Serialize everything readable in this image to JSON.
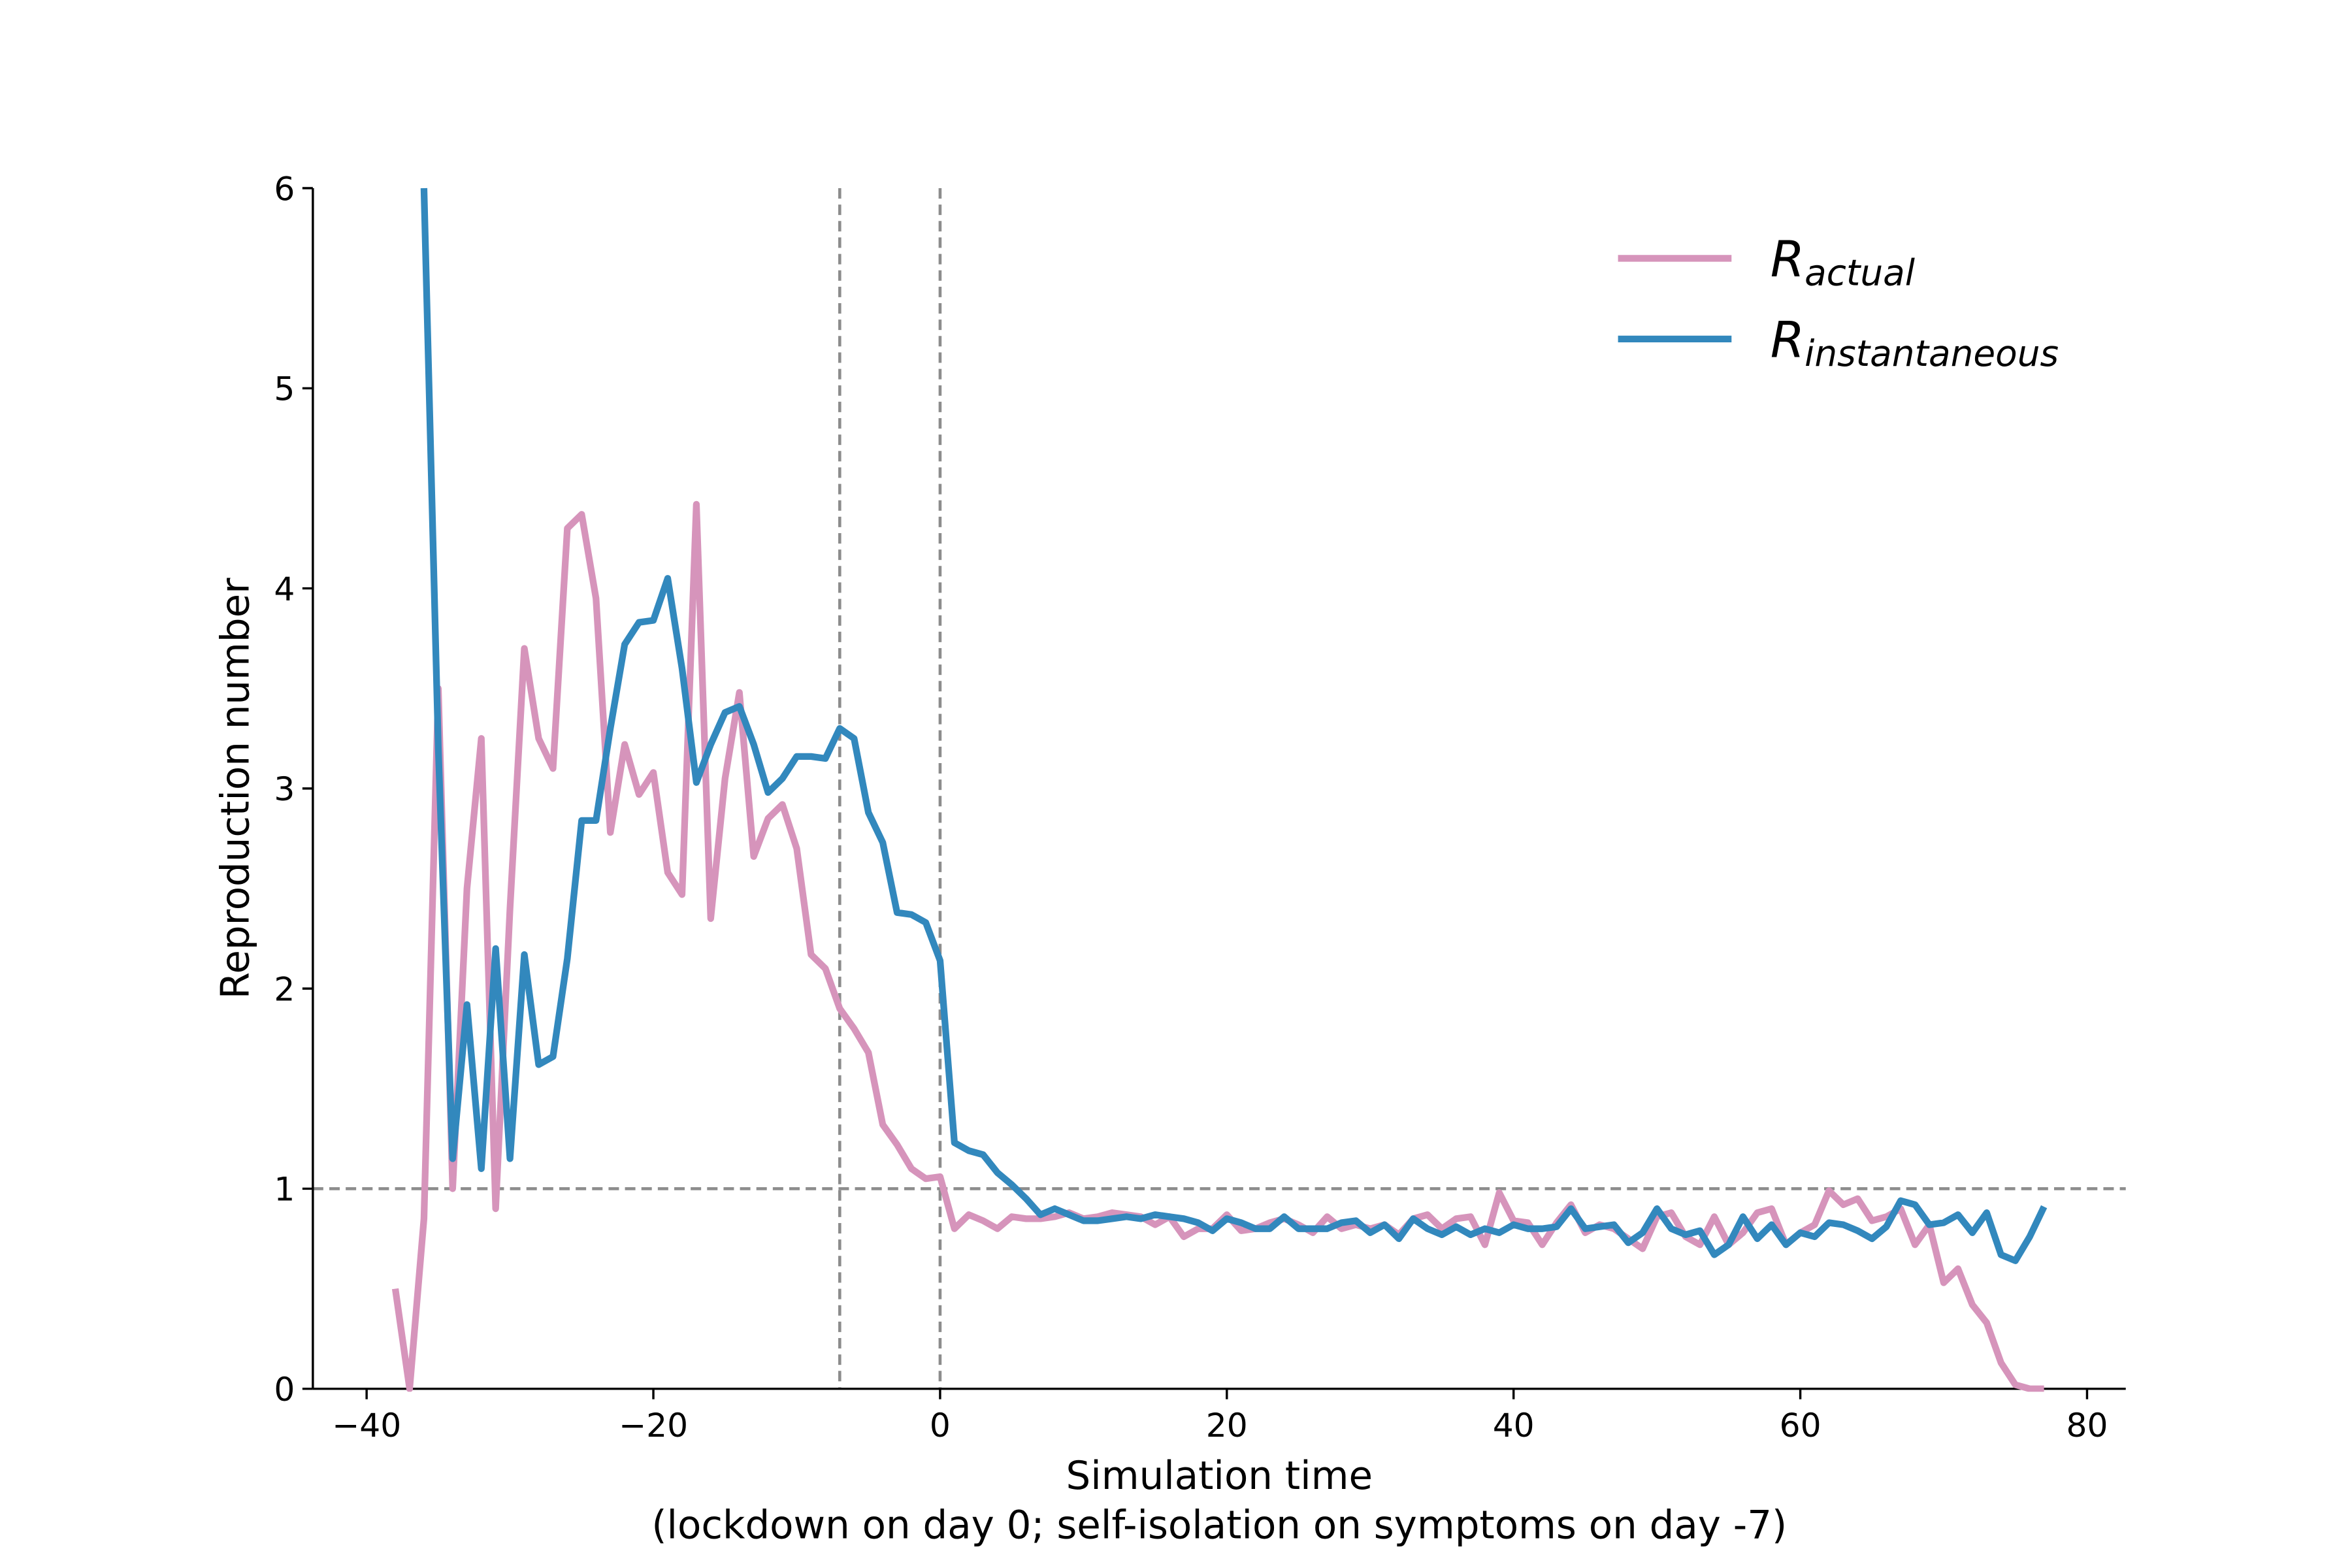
{
  "chart_data": {
    "type": "line",
    "xlabel": [
      "Simulation time",
      "(lockdown on day 0; self-isolation on symptoms on day -7)"
    ],
    "ylabel": "Reproduction number",
    "xlim": [
      -43.75,
      82.7
    ],
    "ylim": [
      0,
      6
    ],
    "xticks": [
      {
        "value": -40,
        "label": "−40"
      },
      {
        "value": -20,
        "label": "−20"
      },
      0,
      20,
      40,
      60,
      80
    ],
    "yticks": [
      0,
      1,
      2,
      3,
      4,
      5,
      6
    ],
    "grid": false,
    "legend": "upper right",
    "vlines": [
      -7,
      0
    ],
    "hlines": [
      1
    ],
    "reference_color": "#8c8c8c",
    "x": [
      -38,
      -37,
      -36,
      -35,
      -34,
      -33,
      -32,
      -31,
      -30,
      -29,
      -28,
      -27,
      -26,
      -25,
      -24,
      -23,
      -22,
      -21,
      -20,
      -19,
      -18,
      -17,
      -16,
      -15,
      -14,
      -13,
      -12,
      -11,
      -10,
      -9,
      -8,
      -7,
      -6,
      -5,
      -4,
      -3,
      -2,
      -1,
      0,
      1,
      2,
      3,
      4,
      5,
      6,
      7,
      8,
      9,
      10,
      11,
      12,
      13,
      14,
      15,
      16,
      17,
      18,
      19,
      20,
      21,
      22,
      23,
      24,
      25,
      26,
      27,
      28,
      29,
      30,
      31,
      32,
      33,
      34,
      35,
      36,
      37,
      38,
      39,
      40,
      41,
      42,
      43,
      44,
      45,
      46,
      47,
      48,
      49,
      50,
      51,
      52,
      53,
      54,
      55,
      56,
      57,
      58,
      59,
      60,
      61,
      62,
      63,
      64,
      65,
      66,
      67,
      68,
      69,
      70,
      71,
      72,
      73,
      74,
      75,
      76,
      77
    ],
    "series": [
      {
        "name": "R",
        "subscript": "actual",
        "color": "#d694bb",
        "values": [
          0.5,
          0,
          0.85,
          3.5,
          1.0,
          2.5,
          3.25,
          0.9,
          2.4,
          3.7,
          3.25,
          3.1,
          4.3,
          4.37,
          3.95,
          2.78,
          3.22,
          2.97,
          3.08,
          2.58,
          2.47,
          4.42,
          2.35,
          3.05,
          3.48,
          2.66,
          2.85,
          2.92,
          2.7,
          2.17,
          2.1,
          1.9,
          1.8,
          1.68,
          1.32,
          1.22,
          1.1,
          1.05,
          1.06,
          0.8,
          0.87,
          0.84,
          0.8,
          0.86,
          0.85,
          0.85,
          0.86,
          0.88,
          0.85,
          0.86,
          0.88,
          0.87,
          0.86,
          0.82,
          0.86,
          0.76,
          0.8,
          0.8,
          0.87,
          0.79,
          0.8,
          0.83,
          0.85,
          0.82,
          0.78,
          0.86,
          0.8,
          0.82,
          0.8,
          0.82,
          0.77,
          0.85,
          0.87,
          0.8,
          0.85,
          0.86,
          0.72,
          0.98,
          0.84,
          0.83,
          0.72,
          0.83,
          0.92,
          0.78,
          0.82,
          0.8,
          0.75,
          0.7,
          0.86,
          0.88,
          0.76,
          0.72,
          0.86,
          0.72,
          0.78,
          0.88,
          0.9,
          0.72,
          0.78,
          0.82,
          0.99,
          0.92,
          0.95,
          0.84,
          0.86,
          0.9,
          0.72,
          0.82,
          0.53,
          0.6,
          0.42,
          0.33,
          0.13,
          0.02,
          0,
          0
        ]
      },
      {
        "name": "R",
        "subscript": "instantaneous",
        "color": "#3288bd",
        "values": [
          null,
          null,
          6,
          3.2,
          1.15,
          1.92,
          1.1,
          2.2,
          1.15,
          2.17,
          1.62,
          1.66,
          2.15,
          2.84,
          2.84,
          3.3,
          3.72,
          3.83,
          3.84,
          4.05,
          3.6,
          3.03,
          3.22,
          3.38,
          3.41,
          3.22,
          2.98,
          3.05,
          3.16,
          3.16,
          3.15,
          3.3,
          3.25,
          2.88,
          2.73,
          2.38,
          2.37,
          2.33,
          2.14,
          1.23,
          1.19,
          1.17,
          1.08,
          1.02,
          0.95,
          0.87,
          0.9,
          0.87,
          0.84,
          0.84,
          0.85,
          0.86,
          0.85,
          0.87,
          0.86,
          0.85,
          0.83,
          0.79,
          0.85,
          0.83,
          0.8,
          0.8,
          0.86,
          0.8,
          0.8,
          0.8,
          0.83,
          0.84,
          0.78,
          0.82,
          0.75,
          0.85,
          0.8,
          0.77,
          0.81,
          0.77,
          0.8,
          0.78,
          0.82,
          0.8,
          0.8,
          0.81,
          0.9,
          0.8,
          0.81,
          0.82,
          0.73,
          0.78,
          0.9,
          0.8,
          0.77,
          0.79,
          0.67,
          0.72,
          0.86,
          0.75,
          0.82,
          0.72,
          0.78,
          0.76,
          0.83,
          0.82,
          0.79,
          0.75,
          0.81,
          0.94,
          0.92,
          0.82,
          0.83,
          0.87,
          0.78,
          0.88,
          0.67,
          0.64,
          0.76,
          0.91
        ]
      }
    ]
  }
}
